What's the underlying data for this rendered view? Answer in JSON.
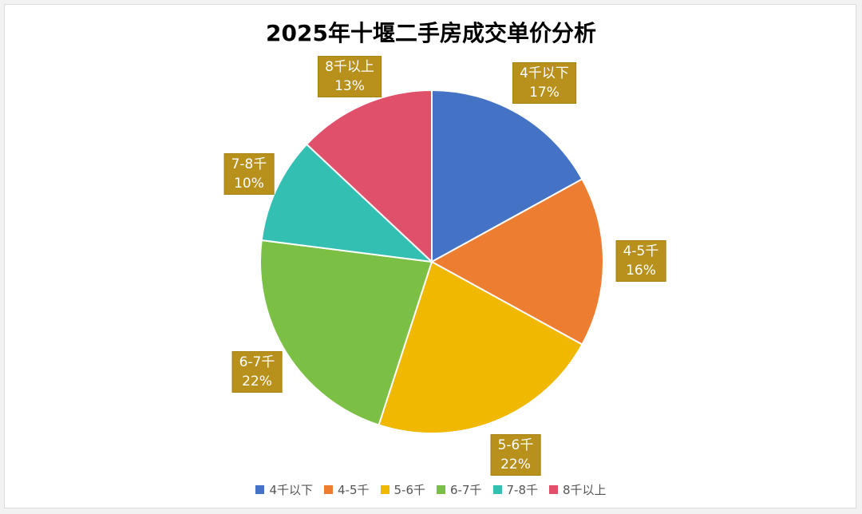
{
  "chart_data": {
    "type": "pie",
    "title": "2025年十堰二手房成交单价分析",
    "categories": [
      "4千以下",
      "4-5千",
      "5-6千",
      "6-7千",
      "7-8千",
      "8千以上"
    ],
    "values": [
      17,
      16,
      22,
      22,
      10,
      13
    ],
    "value_labels": [
      "17%",
      "16%",
      "22%",
      "22%",
      "10%",
      "13%"
    ],
    "colors": [
      "#4472c4",
      "#ed7d31",
      "#f0b800",
      "#7bbf44",
      "#33c0b3",
      "#e0506a"
    ],
    "label_color": "#b8901c",
    "legend": "bottom"
  }
}
